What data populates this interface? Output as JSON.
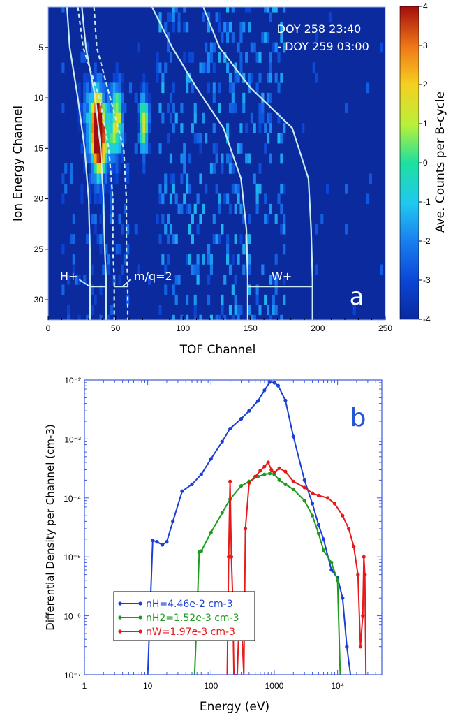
{
  "colors": {
    "background": "#0a2a9e",
    "H": "#1a3fd6",
    "H2": "#1e9a1e",
    "W": "#e61a1a",
    "panel_b_label": "#2457d6",
    "axis_frame_b": "#3d5bd9"
  },
  "panel_a": {
    "panel_label": "a",
    "time_line1": "DOY 258 23:40",
    "time_line2": "- DOY 259 03:00",
    "xlabel": "TOF Channel",
    "ylabel": "Ion Energy Channel",
    "colorbar_label": "Ave. Counts per B-cycle",
    "xticks": [
      "0",
      "50",
      "100",
      "150",
      "200",
      "250"
    ],
    "yticks": [
      "5",
      "10",
      "15",
      "20",
      "25",
      "30"
    ],
    "cticks": [
      "4",
      "3",
      "2",
      "1",
      "0",
      "-1",
      "-2",
      "-3",
      "-4"
    ],
    "species": {
      "h": "H+",
      "mq2": "m/q=2",
      "w": "W+"
    }
  },
  "chart_data": [
    {
      "type": "heatmap",
      "title": "",
      "xlabel": "TOF Channel",
      "ylabel": "Ion Energy Channel",
      "xlim": [
        0,
        250
      ],
      "ylim": [
        32,
        1
      ],
      "clim": [
        -4,
        4
      ],
      "colorbar_label": "Ave. Counts per B-cycle",
      "hotspots": [
        {
          "x": 36,
          "y": 12.5,
          "value": 4
        },
        {
          "x": 30,
          "y": 12,
          "value": 1
        },
        {
          "x": 50,
          "y": 12,
          "value": 0
        },
        {
          "x": 70,
          "y": 12.5,
          "value": 2
        }
      ],
      "boundaries": {
        "H+": {
          "left": [
            [
              14,
              1
            ],
            [
              16,
              5
            ],
            [
              22,
              10
            ],
            [
              27,
              15
            ],
            [
              30,
              20
            ],
            [
              31,
              25
            ],
            [
              31,
              29
            ],
            [
              31,
              32
            ]
          ],
          "right": [
            [
              25,
              1
            ],
            [
              28,
              5
            ],
            [
              35,
              10
            ],
            [
              39,
              15
            ],
            [
              41,
              20
            ],
            [
              42,
              25
            ],
            [
              43,
              28
            ],
            [
              43,
              32
            ]
          ]
        },
        "m/q=2": {
          "left": [
            [
              22,
              1
            ],
            [
              26,
              5
            ],
            [
              38,
              10
            ],
            [
              45,
              15
            ],
            [
              48,
              20
            ],
            [
              48,
              25
            ],
            [
              49,
              28
            ],
            [
              49,
              32
            ]
          ],
          "right": [
            [
              34,
              1
            ],
            [
              36,
              5
            ],
            [
              46,
              10
            ],
            [
              56,
              15
            ],
            [
              58,
              20
            ],
            [
              58,
              25
            ],
            [
              59,
              28
            ],
            [
              59,
              32
            ]
          ]
        },
        "W+": {
          "left": [
            [
              77,
              1
            ],
            [
              92,
              5
            ],
            [
              110,
              9
            ],
            [
              130,
              13
            ],
            [
              143,
              18
            ],
            [
              147,
              23
            ],
            [
              148,
              28
            ],
            [
              148,
              32
            ]
          ],
          "right": [
            [
              115,
              1
            ],
            [
              127,
              5
            ],
            [
              150,
              9
            ],
            [
              181,
              13
            ],
            [
              193,
              18
            ],
            [
              195,
              23
            ],
            [
              196,
              28
            ],
            [
              196,
              32
            ]
          ]
        }
      }
    },
    {
      "type": "line",
      "title": "",
      "panel_label": "b",
      "xlabel": "Energy (eV)",
      "ylabel": "Differential Density per Channel (cm-3)",
      "xscale": "log",
      "yscale": "log",
      "xlim": [
        1,
        50000
      ],
      "ylim": [
        1e-07,
        0.01
      ],
      "xticks": [
        "1",
        "10",
        "100",
        "1000",
        "10⁴"
      ],
      "yticks": [
        "10⁻²",
        "10⁻³",
        "10⁻⁴",
        "10⁻⁵",
        "10⁻⁶",
        "10⁻⁷"
      ],
      "legend_position": "lower-left",
      "series": [
        {
          "name": "nH=4.46e-2 cm-3",
          "color": "#1a3fd6",
          "x": [
            10,
            11,
            12,
            14,
            17,
            20,
            25,
            35,
            50,
            70,
            100,
            150,
            200,
            300,
            400,
            550,
            700,
            850,
            1000,
            1150,
            1500,
            2000,
            3000,
            4000,
            5000,
            6000,
            8000,
            10000,
            12000,
            14000,
            16000
          ],
          "y": [
            1e-07,
            1.5e-06,
            1.9e-05,
            1.8e-05,
            1.6e-05,
            1.8e-05,
            4e-05,
            0.00013,
            0.00017,
            0.00025,
            0.00046,
            0.0009,
            0.0015,
            0.0022,
            0.003,
            0.0044,
            0.0067,
            0.0092,
            0.009,
            0.008,
            0.0045,
            0.0011,
            0.0002,
            8e-05,
            3.5e-05,
            2e-05,
            6e-06,
            4.4e-06,
            2e-06,
            3e-07,
            1e-07
          ]
        },
        {
          "name": "nH2=1.52e-3 cm-3",
          "color": "#1e9a1e",
          "x": [
            55,
            60,
            65,
            70,
            100,
            150,
            200,
            300,
            400,
            550,
            700,
            850,
            1000,
            1200,
            1500,
            2000,
            3000,
            4000,
            5000,
            6000,
            8000,
            10000,
            11000
          ],
          "y": [
            1e-07,
            1e-06,
            1.2e-05,
            1.25e-05,
            2.6e-05,
            5.6e-05,
            9.5e-05,
            0.00016,
            0.00019,
            0.00023,
            0.00025,
            0.00026,
            0.00025,
            0.0002,
            0.00017,
            0.00014,
            9e-05,
            5e-05,
            2.5e-05,
            1.3e-05,
            8e-06,
            4e-06,
            1e-07
          ]
        },
        {
          "name": "nW=1.97e-3 cm-3",
          "color": "#e61a1a",
          "x": [
            180,
            190,
            200,
            210,
            220,
            230,
            260,
            280,
            300,
            330,
            350,
            400,
            500,
            600,
            700,
            800,
            900,
            1000,
            1200,
            1500,
            2000,
            3000,
            4000,
            5000,
            7000,
            9000,
            12000,
            15000,
            18000,
            21000,
            23000,
            25000,
            26000,
            27000,
            28000
          ],
          "y": [
            1e-07,
            1e-05,
            0.00019,
            1e-05,
            2e-06,
            1e-07,
            1e-07,
            1e-06,
            1e-06,
            1e-07,
            3e-05,
            0.00018,
            0.00023,
            0.00029,
            0.00034,
            0.0004,
            0.0003,
            0.00027,
            0.00032,
            0.00028,
            0.00019,
            0.00015,
            0.00012,
            0.00011,
            0.0001,
            8e-05,
            5e-05,
            3e-05,
            1.5e-05,
            5e-06,
            3e-07,
            1e-06,
            1e-05,
            5e-06,
            1e-07
          ]
        }
      ]
    }
  ]
}
